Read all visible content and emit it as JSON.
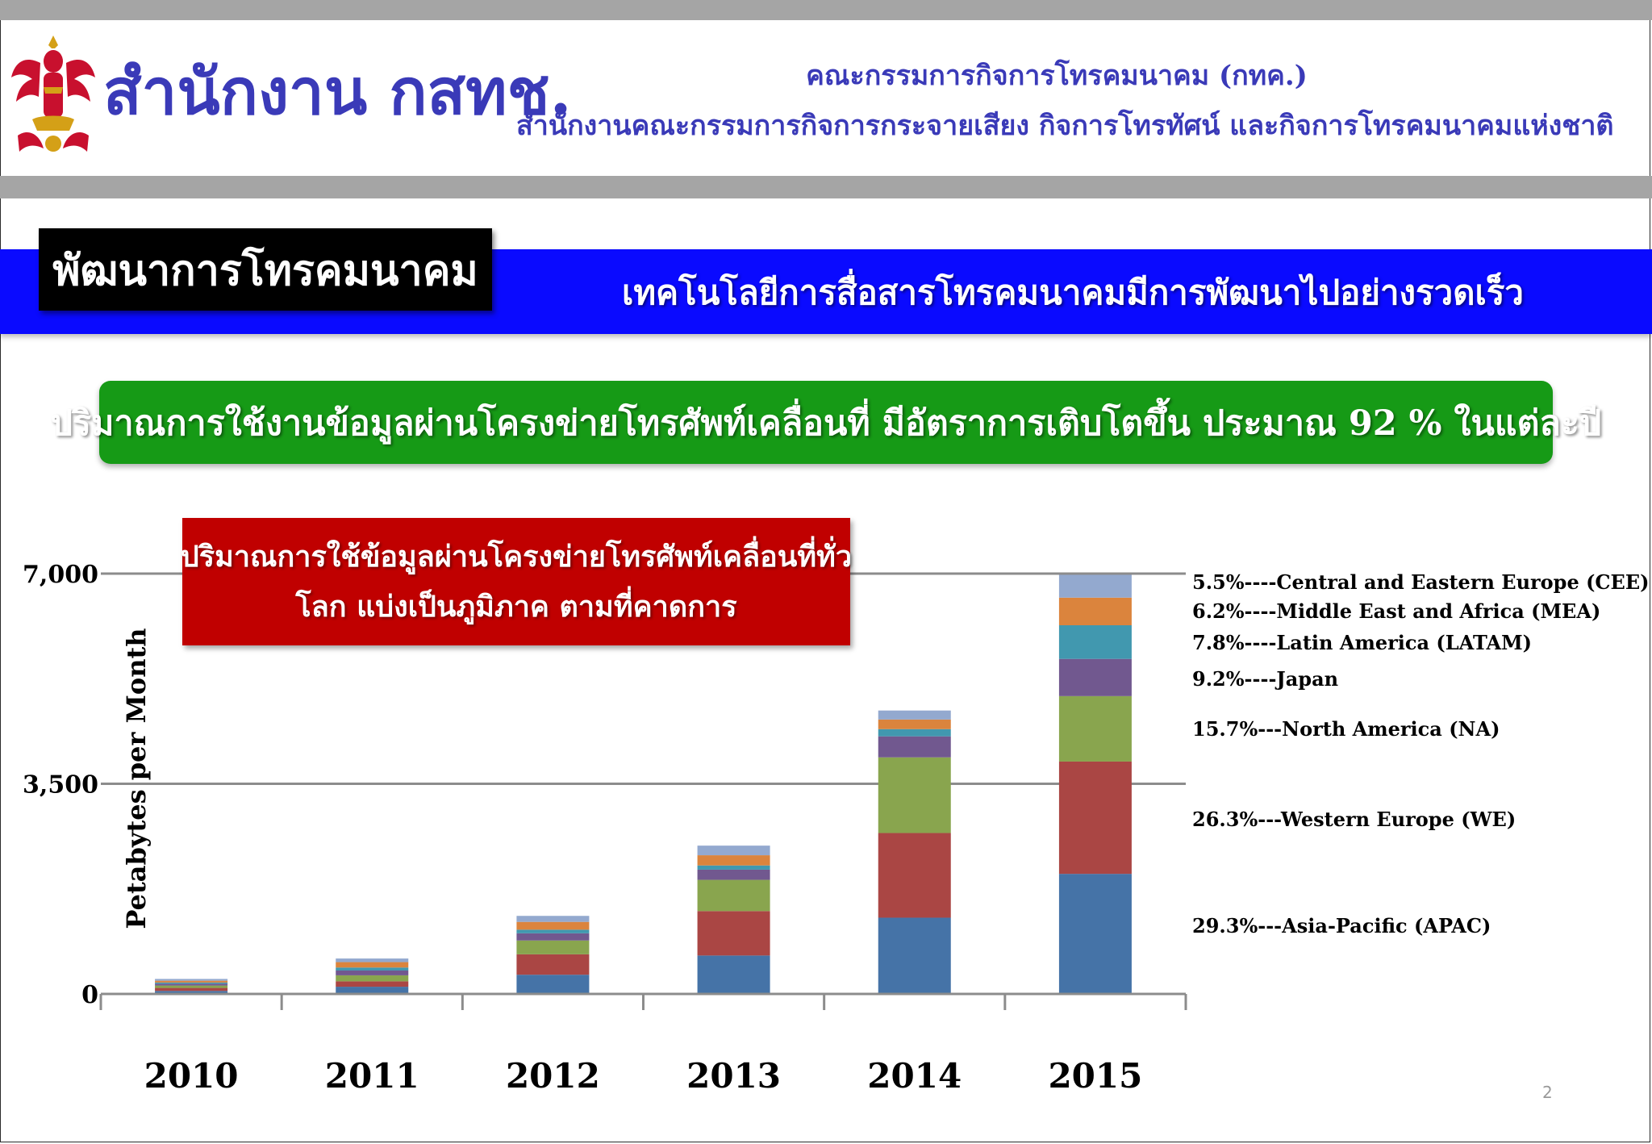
{
  "header": {
    "office_title": "สำนักงาน กสทช.",
    "org_line1": "คณะกรรมการกิจการโทรคมนาคม (กทค.)",
    "org_line2": "สำนักงานคณะกรรมการกิจการกระจายเสียง กิจการโทรทัศน์ และกิจการโทรคมนาคมแห่งชาติ",
    "emblem_icon": "garuda-emblem-icon"
  },
  "section": {
    "label": "พัฒนาการโทรคมนาคม",
    "band_text": "เทคโนโลยีการสื่อสารโทรคมนาคมมีการพัฒนาไปอย่างรวดเร็ว"
  },
  "banner": {
    "text": "ปริมาณการใช้งานข้อมูลผ่านโครงข่ายโทรศัพท์เคลื่อนที่ มีอัตราการเติบโตขึ้น ประมาณ 92 % ในแต่ละปี"
  },
  "callout": {
    "line1": "ปริมาณการใช้ข้อมูลผ่านโครงข่ายโทรศัพท์เคลื่อนที่ทั่ว",
    "line2": "โลก แบ่งเป็นภูมิภาค ตามที่คาดการ"
  },
  "page_number": "2",
  "colors": {
    "title_blue": "#3a3ab8",
    "band_blue": "#0a0aff",
    "banner_green": "#169a16",
    "callout_red": "#c00000",
    "header_grey": "#a5a5a5"
  },
  "chart_data": {
    "type": "bar",
    "stacked": true,
    "ylabel": "Petabytes per Month",
    "ylim": [
      0,
      7000
    ],
    "yticks": [
      {
        "value": 0,
        "label": "0"
      },
      {
        "value": 3500,
        "label": "3,500"
      },
      {
        "value": 7000,
        "label": "7,000"
      }
    ],
    "gridlines": [
      3500,
      7000
    ],
    "categories": [
      "2010",
      "2011",
      "2012",
      "2013",
      "2014",
      "2015"
    ],
    "series": [
      {
        "name": "29.3%---Asia-Pacific (APAC)",
        "color": "#4573a7",
        "values": [
          50,
          120,
          320,
          640,
          1270,
          2000
        ]
      },
      {
        "name": "26.3%---Western Europe (WE)",
        "color": "#aa4644",
        "values": [
          50,
          90,
          340,
          740,
          1410,
          1870
        ]
      },
      {
        "name": "15.7%---North America (NA)",
        "color": "#89a54e",
        "values": [
          40,
          100,
          230,
          520,
          1260,
          1090
        ]
      },
      {
        "name": "9.2%----Japan",
        "color": "#71588f",
        "values": [
          30,
          80,
          120,
          170,
          350,
          620
        ]
      },
      {
        "name": "7.8%----Latin America (LATAM)",
        "color": "#4198af",
        "values": [
          20,
          50,
          60,
          70,
          120,
          560
        ]
      },
      {
        "name": "6.2%----Middle East and Africa (MEA)",
        "color": "#db843d",
        "values": [
          30,
          90,
          130,
          170,
          160,
          460
        ]
      },
      {
        "name": "5.5%----Central and Eastern Europe (CEE)",
        "color": "#93a9cf",
        "values": [
          30,
          60,
          100,
          160,
          150,
          380
        ]
      }
    ],
    "legend_placement": "right"
  }
}
